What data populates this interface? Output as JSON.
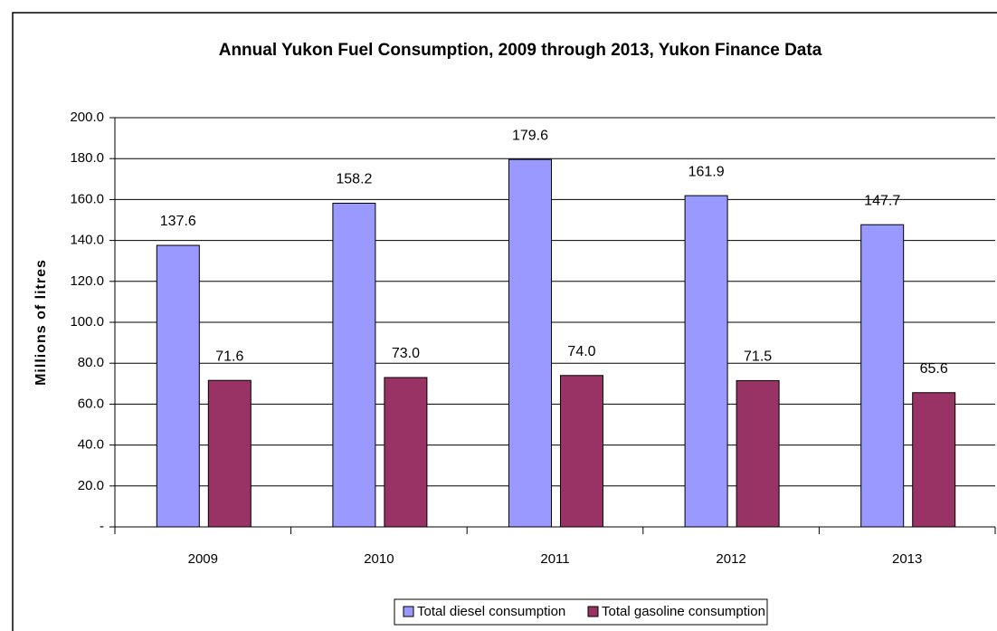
{
  "chart_data": {
    "type": "bar",
    "title": "Annual Yukon Fuel Consumption, 2009 through 2013, Yukon Finance Data",
    "y_label": "Millions of litres",
    "categories": [
      "2009",
      "2010",
      "2011",
      "2012",
      "2013"
    ],
    "series": [
      {
        "name": "Total diesel consumption",
        "color": "#9999ff",
        "values": [
          137.6,
          158.2,
          179.6,
          161.9,
          147.7
        ],
        "value_labels": [
          "137.6",
          "158.2",
          "179.6",
          "161.9",
          "147.7"
        ]
      },
      {
        "name": "Total gasoline consumption",
        "color": "#993366",
        "values": [
          71.6,
          73.0,
          74.0,
          71.5,
          65.6
        ],
        "value_labels": [
          "71.6",
          "73.0",
          "74.0",
          "71.5",
          "65.6"
        ]
      }
    ],
    "ylim": [
      0,
      200
    ],
    "yticks": [
      {
        "value": 0,
        "label": "-"
      },
      {
        "value": 20,
        "label": "20.0"
      },
      {
        "value": 40,
        "label": "40.0"
      },
      {
        "value": 60,
        "label": "60.0"
      },
      {
        "value": 80,
        "label": "80.0"
      },
      {
        "value": 100,
        "label": "100.0"
      },
      {
        "value": 120,
        "label": "120.0"
      },
      {
        "value": 140,
        "label": "140.0"
      },
      {
        "value": 160,
        "label": "160.0"
      },
      {
        "value": 180,
        "label": "180.0"
      },
      {
        "value": 200,
        "label": "200.0"
      }
    ],
    "grid": true,
    "legend": "bottom"
  }
}
